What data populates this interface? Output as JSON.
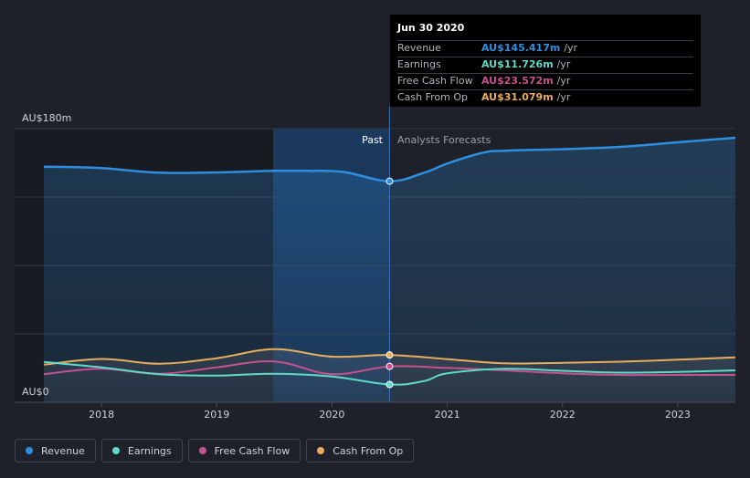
{
  "chart_data": {
    "type": "line",
    "x_ticks": [
      2018,
      2019,
      2020,
      2021,
      2022,
      2023
    ],
    "x_range": [
      2017.5,
      2023.5
    ],
    "y_range": [
      0,
      180
    ],
    "y_labels": {
      "top": "AU$180m",
      "bottom": "AU$0"
    },
    "past_label": "Past",
    "forecast_label": "Analysts Forecasts",
    "forecast_start": 2020.5,
    "series": [
      {
        "name": "Revenue",
        "color": "#2e8ee0",
        "points": [
          [
            2017.5,
            155
          ],
          [
            2018.0,
            154
          ],
          [
            2018.5,
            151
          ],
          [
            2019.0,
            151.2
          ],
          [
            2019.5,
            152.2
          ],
          [
            2019.8,
            152.2
          ],
          [
            2020.1,
            151.5
          ],
          [
            2020.5,
            145.4
          ],
          [
            2020.8,
            151
          ],
          [
            2021.0,
            157
          ],
          [
            2021.3,
            164
          ],
          [
            2021.5,
            165.5
          ],
          [
            2022.0,
            166.5
          ],
          [
            2022.5,
            168
          ],
          [
            2023.0,
            171
          ],
          [
            2023.5,
            174
          ]
        ]
      },
      {
        "name": "Earnings",
        "color": "#5fd9c8",
        "points": [
          [
            2017.5,
            26.5
          ],
          [
            2018.0,
            23
          ],
          [
            2018.5,
            18.5
          ],
          [
            2019.0,
            17.6
          ],
          [
            2019.5,
            18.8
          ],
          [
            2020.0,
            17
          ],
          [
            2020.5,
            11.7
          ],
          [
            2020.8,
            14
          ],
          [
            2021.0,
            19
          ],
          [
            2021.5,
            22
          ],
          [
            2022.0,
            20.7
          ],
          [
            2022.5,
            19.5
          ],
          [
            2023.0,
            20
          ],
          [
            2023.5,
            21
          ]
        ]
      },
      {
        "name": "Free Cash Flow",
        "color": "#c5518e",
        "points": [
          [
            2017.5,
            18.5
          ],
          [
            2018.0,
            22
          ],
          [
            2018.5,
            18.7
          ],
          [
            2019.0,
            23
          ],
          [
            2019.5,
            26.9
          ],
          [
            2020.0,
            18.5
          ],
          [
            2020.5,
            23.6
          ],
          [
            2021.0,
            22.6
          ],
          [
            2021.5,
            21
          ],
          [
            2022.0,
            19
          ],
          [
            2022.5,
            18
          ],
          [
            2023.0,
            18
          ],
          [
            2023.5,
            18
          ]
        ]
      },
      {
        "name": "Cash From Op",
        "color": "#e9ad5d",
        "points": [
          [
            2017.5,
            24.7
          ],
          [
            2018.0,
            28.5
          ],
          [
            2018.5,
            25.4
          ],
          [
            2019.0,
            29
          ],
          [
            2019.5,
            34.9
          ],
          [
            2020.0,
            30
          ],
          [
            2020.5,
            31.1
          ],
          [
            2021.0,
            28.4
          ],
          [
            2021.5,
            25.6
          ],
          [
            2022.0,
            26
          ],
          [
            2022.5,
            26.7
          ],
          [
            2023.0,
            28
          ],
          [
            2023.5,
            29.5
          ]
        ]
      }
    ]
  },
  "tooltip": {
    "date": "Jun 30 2020",
    "rows": [
      {
        "label": "Revenue",
        "value": "AU$145.417m",
        "unit": "/yr",
        "color": "#2e8ee0"
      },
      {
        "label": "Earnings",
        "value": "AU$11.726m",
        "unit": "/yr",
        "color": "#5fd9c8"
      },
      {
        "label": "Free Cash Flow",
        "value": "AU$23.572m",
        "unit": "/yr",
        "color": "#c5518e"
      },
      {
        "label": "Cash From Op",
        "value": "AU$31.079m",
        "unit": "/yr",
        "color": "#e9ad5d"
      }
    ]
  },
  "legend": [
    {
      "label": "Revenue",
      "color": "#2e8ee0"
    },
    {
      "label": "Earnings",
      "color": "#5fd9c8"
    },
    {
      "label": "Free Cash Flow",
      "color": "#c5518e"
    },
    {
      "label": "Cash From Op",
      "color": "#e9ad5d"
    }
  ]
}
